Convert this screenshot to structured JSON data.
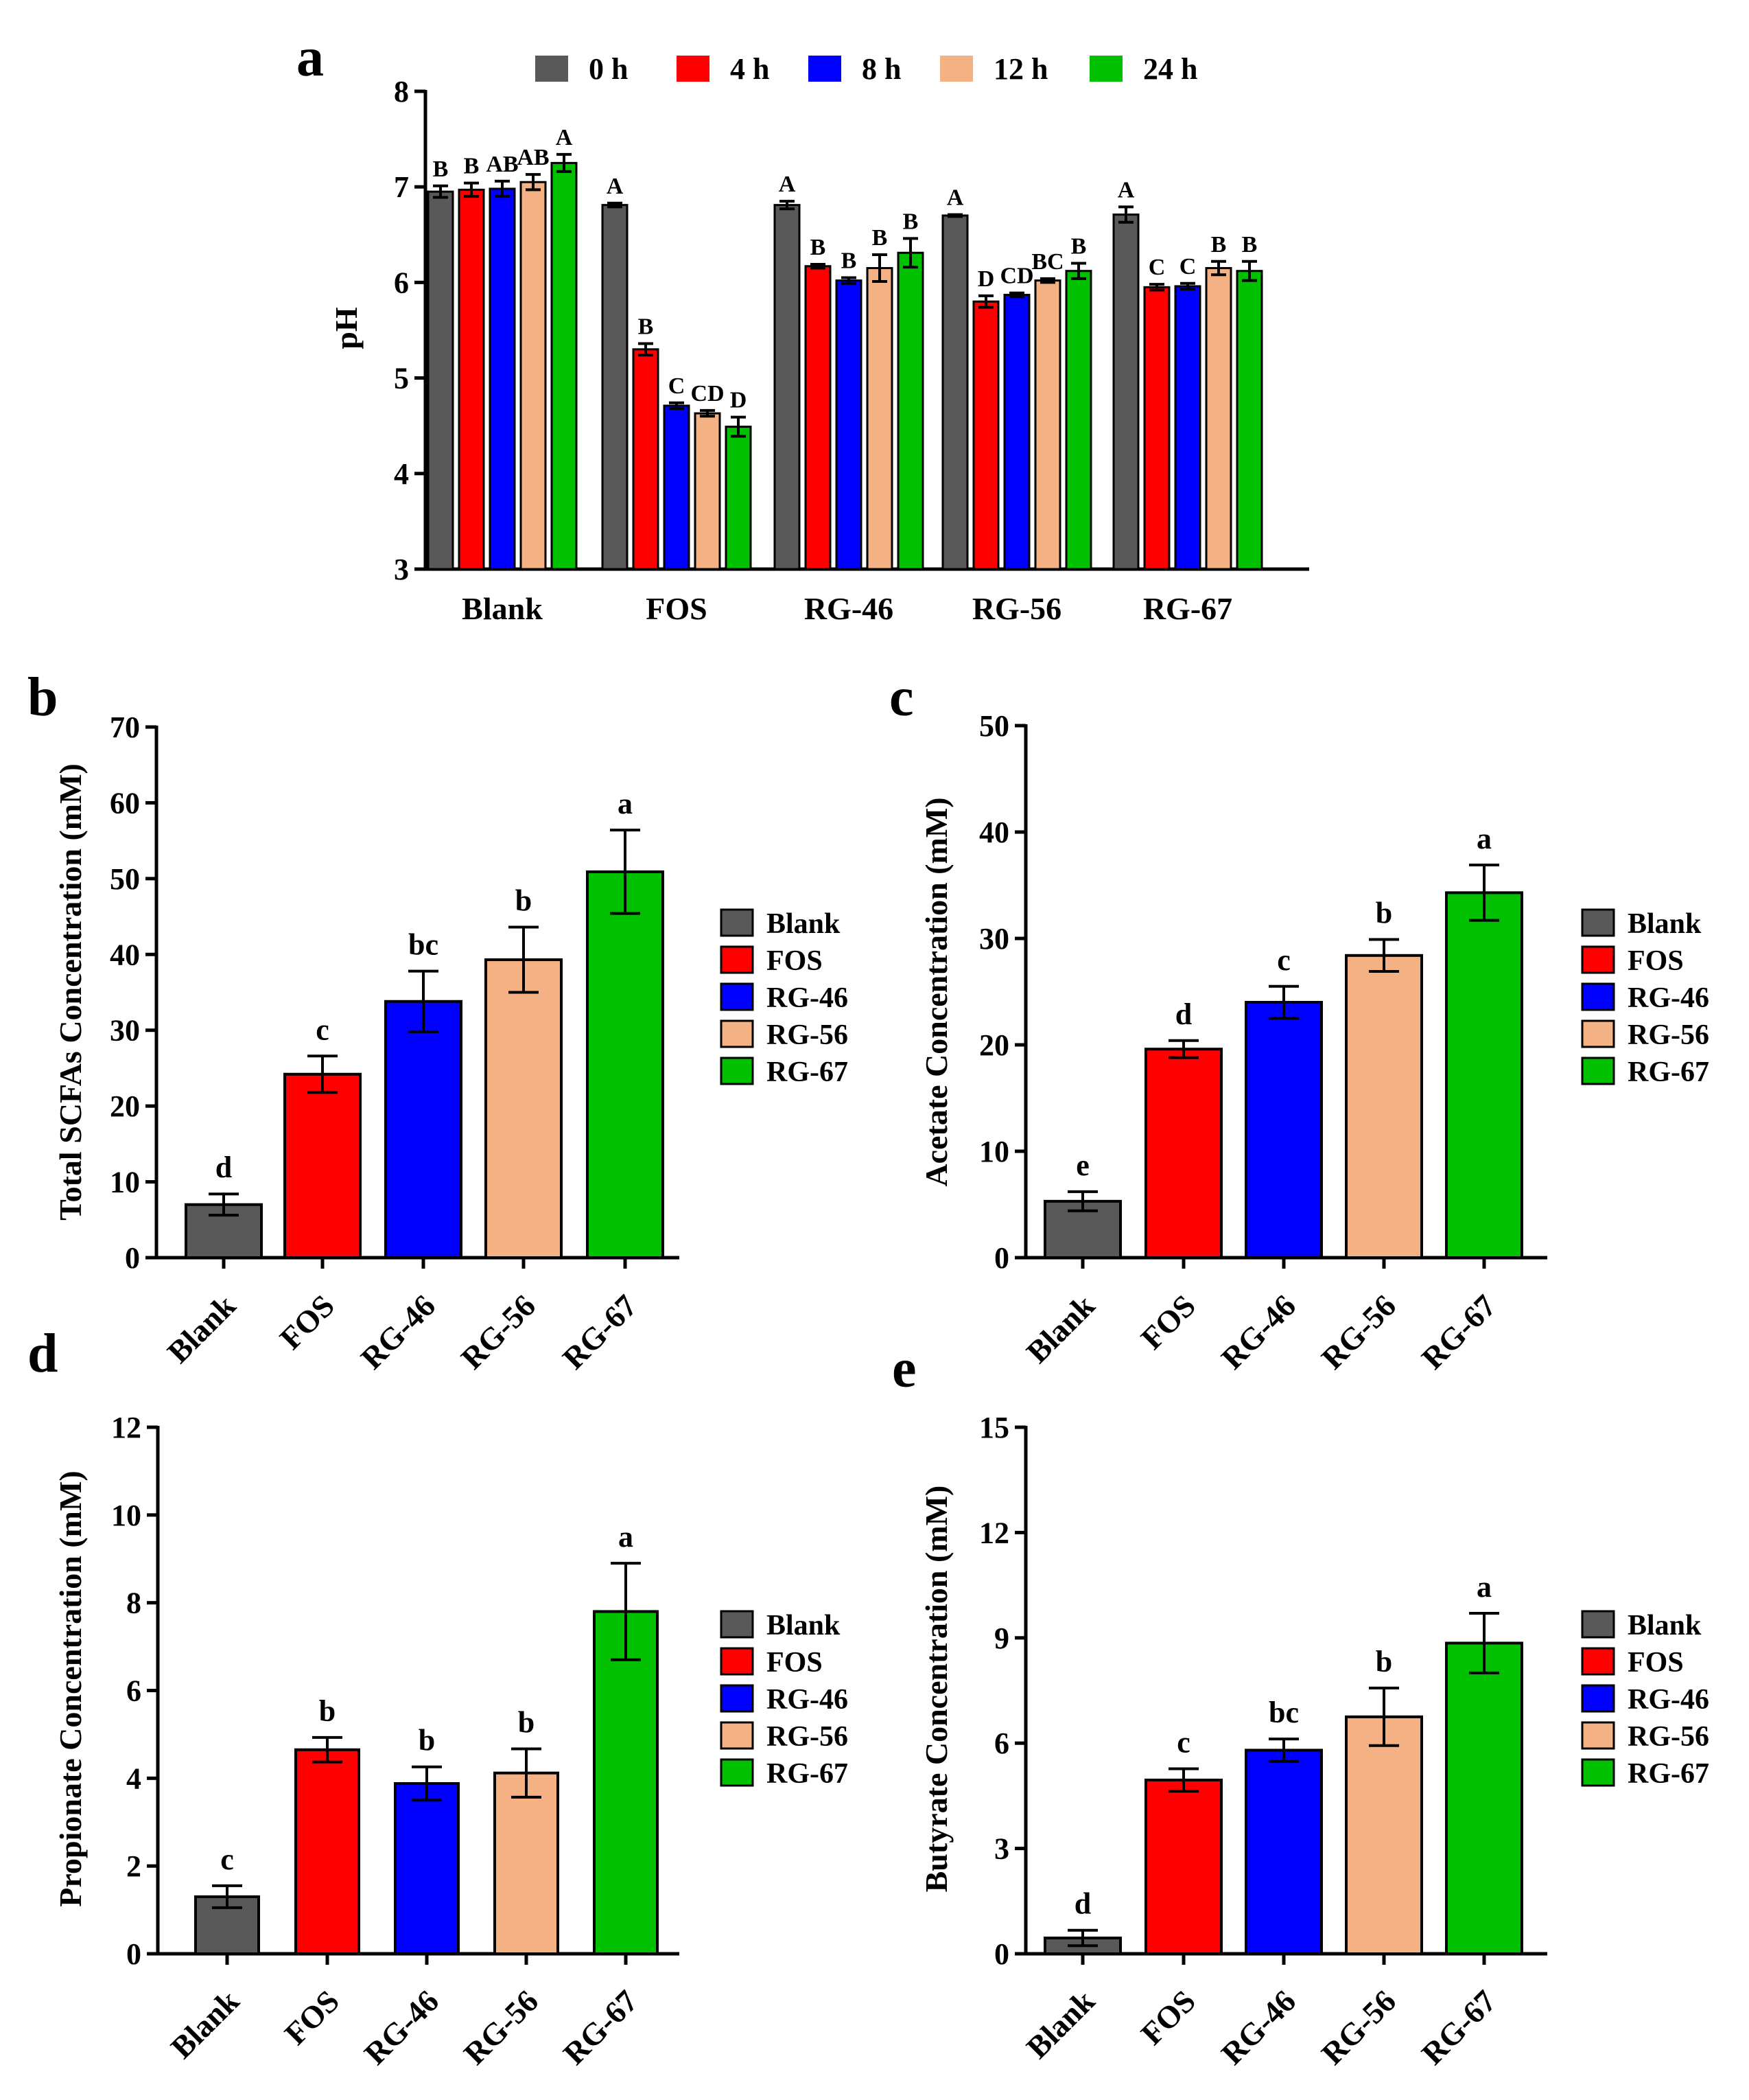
{
  "figure": {
    "colors": {
      "0 h": "#595959",
      "4 h": "#ff0000",
      "8 h": "#0000ff",
      "12 h": "#f4b183",
      "24 h": "#00c000",
      "Blank": "#595959",
      "FOS": "#ff0000",
      "RG-46": "#0000ff",
      "RG-56": "#f4b183",
      "RG-67": "#00c000"
    }
  },
  "chart_data": [
    {
      "panel": "a",
      "type": "bar",
      "categories": [
        "Blank",
        "FOS",
        "RG-46",
        "RG-56",
        "RG-67"
      ],
      "legend": [
        "0 h",
        "4 h",
        "8 h",
        "12 h",
        "24 h"
      ],
      "legend_position": "top",
      "ylabel": "pH",
      "ylim": [
        3,
        8
      ],
      "yticks": [
        3,
        4,
        5,
        6,
        7,
        8
      ],
      "series": [
        {
          "name": "0 h",
          "values": [
            6.95,
            6.81,
            6.81,
            6.7,
            6.71
          ],
          "errors": [
            0.06,
            0.02,
            0.04,
            0.01,
            0.08
          ],
          "labels": [
            "B",
            "A",
            "A",
            "A",
            "A"
          ]
        },
        {
          "name": "4 h",
          "values": [
            6.97,
            5.3,
            6.17,
            5.8,
            5.95
          ],
          "errors": [
            0.07,
            0.06,
            0.02,
            0.06,
            0.03
          ],
          "labels": [
            "B",
            "B",
            "B",
            "D",
            "C"
          ]
        },
        {
          "name": "8 h",
          "values": [
            6.98,
            4.71,
            6.02,
            5.87,
            5.96
          ],
          "errors": [
            0.08,
            0.03,
            0.03,
            0.02,
            0.03
          ],
          "labels": [
            "AB",
            "C",
            "B",
            "CD",
            "C"
          ]
        },
        {
          "name": "12 h",
          "values": [
            7.05,
            4.63,
            6.15,
            6.02,
            6.15
          ],
          "errors": [
            0.08,
            0.03,
            0.14,
            0.02,
            0.07
          ],
          "labels": [
            "AB",
            "CD",
            "B",
            "BC",
            "B"
          ]
        },
        {
          "name": "24 h",
          "values": [
            7.25,
            4.49,
            6.31,
            6.12,
            6.12
          ],
          "errors": [
            0.09,
            0.1,
            0.15,
            0.08,
            0.1
          ],
          "labels": [
            "A",
            "D",
            "B",
            "B",
            "B"
          ]
        }
      ]
    },
    {
      "panel": "b",
      "type": "bar",
      "categories": [
        "Blank",
        "FOS",
        "RG-46",
        "RG-56",
        "RG-67"
      ],
      "values": [
        7.0,
        24.2,
        33.8,
        39.3,
        50.9
      ],
      "errors": [
        1.4,
        2.4,
        4.0,
        4.3,
        5.5
      ],
      "labels": [
        "d",
        "c",
        "bc",
        "b",
        "a"
      ],
      "legend": [
        "Blank",
        "FOS",
        "RG-46",
        "RG-56",
        "RG-67"
      ],
      "ylabel": "Total SCFAs Concentration (mM)",
      "ylim": [
        0,
        70
      ],
      "yticks": [
        0,
        10,
        20,
        30,
        40,
        50,
        60,
        70
      ]
    },
    {
      "panel": "c",
      "type": "bar",
      "categories": [
        "Blank",
        "FOS",
        "RG-46",
        "RG-56",
        "RG-67"
      ],
      "values": [
        5.3,
        19.6,
        24.0,
        28.4,
        34.3
      ],
      "errors": [
        0.9,
        0.8,
        1.5,
        1.5,
        2.6
      ],
      "labels": [
        "e",
        "d",
        "c",
        "b",
        "a"
      ],
      "legend": [
        "Blank",
        "FOS",
        "RG-46",
        "RG-56",
        "RG-67"
      ],
      "ylabel": "Acetate Concentration (mM)",
      "ylim": [
        0,
        50
      ],
      "yticks": [
        0,
        10,
        20,
        30,
        40,
        50
      ]
    },
    {
      "panel": "d",
      "type": "bar",
      "categories": [
        "Blank",
        "FOS",
        "RG-46",
        "RG-56",
        "RG-67"
      ],
      "values": [
        1.3,
        4.65,
        3.88,
        4.12,
        7.8
      ],
      "errors": [
        0.25,
        0.28,
        0.38,
        0.55,
        1.1
      ],
      "labels": [
        "c",
        "b",
        "b",
        "b",
        "a"
      ],
      "legend": [
        "Blank",
        "FOS",
        "RG-46",
        "RG-56",
        "RG-67"
      ],
      "ylabel": "Propionate Concentration (mM)",
      "ylim": [
        0,
        12
      ],
      "yticks": [
        0,
        2,
        4,
        6,
        8,
        10,
        12
      ]
    },
    {
      "panel": "e",
      "type": "bar",
      "categories": [
        "Blank",
        "FOS",
        "RG-46",
        "RG-56",
        "RG-67"
      ],
      "values": [
        0.45,
        4.95,
        5.8,
        6.75,
        8.85
      ],
      "errors": [
        0.22,
        0.32,
        0.32,
        0.82,
        0.85
      ],
      "labels": [
        "d",
        "c",
        "bc",
        "b",
        "a"
      ],
      "legend": [
        "Blank",
        "FOS",
        "RG-46",
        "RG-56",
        "RG-67"
      ],
      "ylabel": "Butyrate Concentration (mM)",
      "ylim": [
        0,
        15
      ],
      "yticks": [
        0,
        3,
        6,
        9,
        12,
        15
      ]
    }
  ]
}
